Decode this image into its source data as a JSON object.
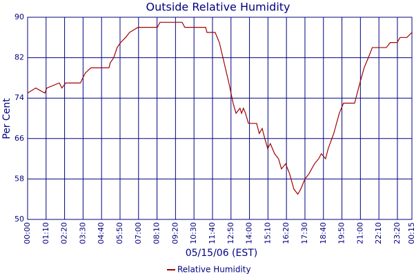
{
  "chart_data": {
    "type": "line",
    "title": "Outside Relative Humidity",
    "y_label": "Per Cent",
    "x_label": "05/15/06 (EST)",
    "x": [
      0,
      31,
      65,
      73,
      120,
      130,
      144,
      200,
      209,
      219,
      240,
      308,
      313,
      326,
      339,
      352,
      371,
      386,
      418,
      491,
      501,
      585,
      595,
      674,
      679,
      710,
      726,
      744,
      762,
      778,
      789,
      804,
      810,
      817,
      825,
      836,
      867,
      877,
      888,
      898,
      909,
      919,
      935,
      950,
      961,
      977,
      992,
      1008,
      1023,
      1034,
      1050,
      1065,
      1086,
      1102,
      1112,
      1128,
      1138,
      1159,
      1180,
      1196,
      1206,
      1238,
      1258,
      1274,
      1290,
      1305,
      1358,
      1373,
      1399,
      1410,
      1436,
      1455
    ],
    "series": [
      {
        "name": "Relative Humidity",
        "color": "#a00000",
        "values": [
          75,
          76,
          75,
          76,
          77,
          76,
          77,
          77,
          78,
          79,
          80,
          80,
          81,
          82,
          84,
          85,
          86,
          87,
          88,
          88,
          89,
          89,
          88,
          88,
          87,
          87,
          85,
          81,
          77,
          73,
          71,
          72,
          71,
          72,
          71,
          69,
          69,
          67,
          68,
          66,
          64,
          65,
          63,
          62,
          60,
          61,
          59,
          56,
          55,
          56,
          58,
          59,
          61,
          62,
          63,
          62,
          64,
          67,
          71,
          73,
          73,
          73,
          77,
          80,
          82,
          84,
          84,
          85,
          85,
          86,
          86,
          87
        ]
      }
    ],
    "xlim": [
      0,
      1455
    ],
    "xticks": [
      {
        "value": 0,
        "label": "00:00"
      },
      {
        "value": 70,
        "label": "01:10"
      },
      {
        "value": 140,
        "label": "02:20"
      },
      {
        "value": 210,
        "label": "03:30"
      },
      {
        "value": 280,
        "label": "04:40"
      },
      {
        "value": 350,
        "label": "05:50"
      },
      {
        "value": 420,
        "label": "07:00"
      },
      {
        "value": 490,
        "label": "08:10"
      },
      {
        "value": 560,
        "label": "09:20"
      },
      {
        "value": 630,
        "label": "10:30"
      },
      {
        "value": 700,
        "label": "11:40"
      },
      {
        "value": 770,
        "label": "12:50"
      },
      {
        "value": 840,
        "label": "14:00"
      },
      {
        "value": 910,
        "label": "15:10"
      },
      {
        "value": 980,
        "label": "16:20"
      },
      {
        "value": 1050,
        "label": "17:30"
      },
      {
        "value": 1120,
        "label": "18:40"
      },
      {
        "value": 1190,
        "label": "19:50"
      },
      {
        "value": 1260,
        "label": "21:00"
      },
      {
        "value": 1330,
        "label": "22:10"
      },
      {
        "value": 1400,
        "label": "23:20"
      },
      {
        "value": 1455,
        "label": "00:15"
      }
    ],
    "ylim": [
      50,
      90
    ],
    "yticks": [
      50,
      58,
      66,
      74,
      82,
      90
    ],
    "grid": true,
    "legend": "bottom"
  }
}
